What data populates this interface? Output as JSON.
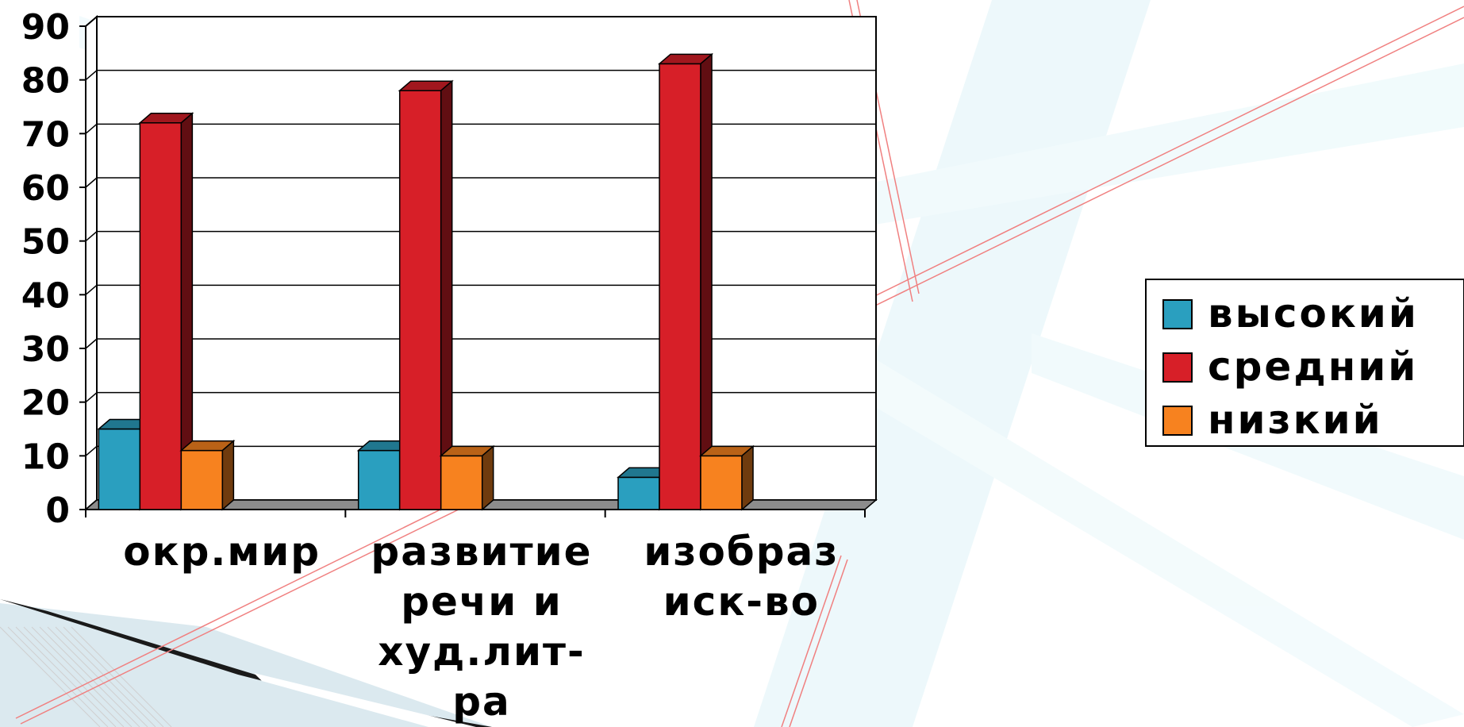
{
  "chart_data": {
    "type": "bar",
    "title": "",
    "xlabel": "",
    "ylabel": "",
    "ylim": [
      0,
      90
    ],
    "yticks": [
      "0",
      "10",
      "20",
      "30",
      "40",
      "50",
      "60",
      "70",
      "80",
      "90"
    ],
    "grid": true,
    "legend_position": "right",
    "categories": [
      [
        "окр.мир"
      ],
      [
        "развитие",
        "речи и",
        "худ.лит-",
        "ра"
      ],
      [
        "изобраз",
        "иск-во"
      ]
    ],
    "series": [
      {
        "name": "высокий",
        "values": [
          15,
          11,
          6
        ],
        "color": "#2a9fbf"
      },
      {
        "name": "средний",
        "values": [
          72,
          78,
          83
        ],
        "color": "#d71f28"
      },
      {
        "name": "низкий",
        "values": [
          11,
          10,
          10
        ],
        "color": "#f7821f"
      }
    ]
  },
  "colors": {
    "background_decoration": "#e8f8fb",
    "frame_lines": "#f08080",
    "floor": "#8c8c8c"
  }
}
